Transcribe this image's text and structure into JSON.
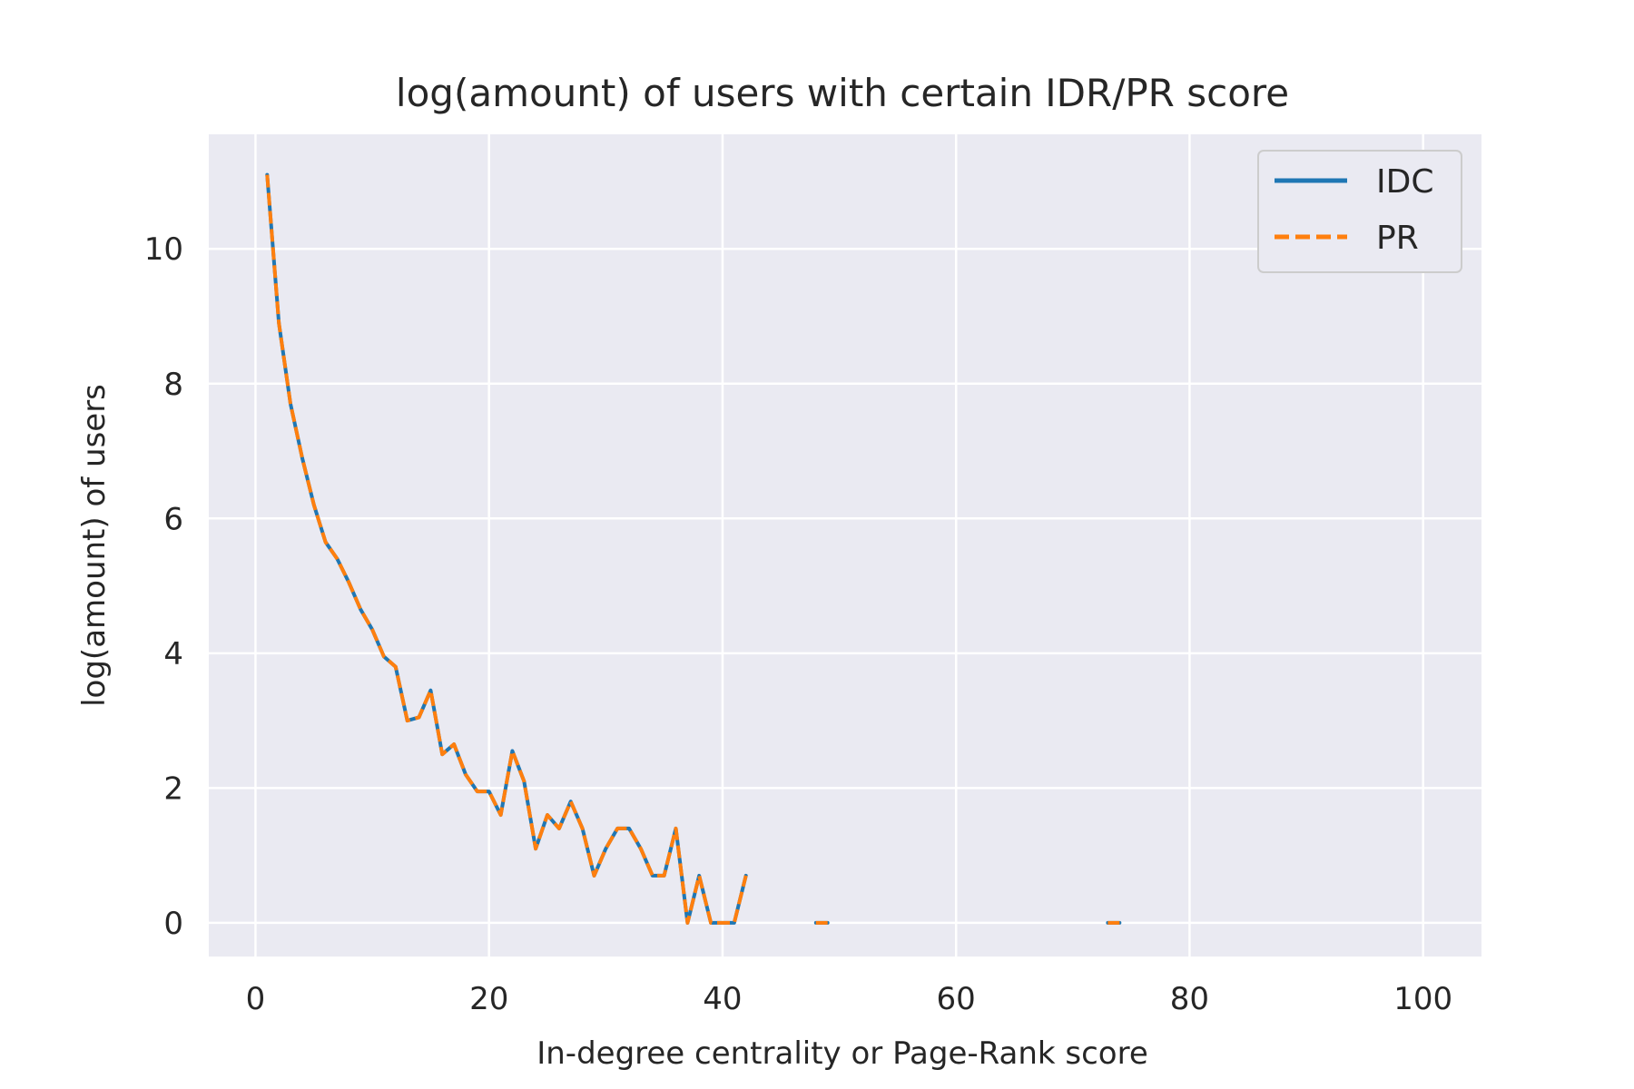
{
  "chart_data": {
    "type": "line",
    "title": "log(amount) of users with certain IDR/PR score",
    "xlabel": "In-degree centrality or Page-Rank score",
    "ylabel": "log(amount) of users",
    "xlim": [
      -4,
      105
    ],
    "ylim": [
      -0.5,
      11.7
    ],
    "xticks": [
      0,
      20,
      40,
      60,
      80,
      100
    ],
    "yticks": [
      0,
      2,
      4,
      6,
      8,
      10
    ],
    "grid": true,
    "legend_position": "top-right",
    "background_color": "#eaeaf2",
    "series": [
      {
        "name": "IDC",
        "color": "#1f77b4",
        "style": "solid",
        "segments": [
          [
            [
              1,
              11.1
            ],
            [
              2,
              8.9
            ],
            [
              3,
              7.7
            ],
            [
              4,
              6.9
            ],
            [
              5,
              6.2
            ],
            [
              6,
              5.65
            ],
            [
              7,
              5.4
            ],
            [
              8,
              5.05
            ],
            [
              9,
              4.65
            ],
            [
              10,
              4.35
            ],
            [
              11,
              3.95
            ],
            [
              12,
              3.8
            ],
            [
              13,
              3.0
            ],
            [
              14,
              3.05
            ],
            [
              15,
              3.45
            ],
            [
              16,
              2.5
            ],
            [
              17,
              2.65
            ],
            [
              18,
              2.2
            ],
            [
              19,
              1.95
            ],
            [
              20,
              1.95
            ],
            [
              21,
              1.6
            ],
            [
              22,
              2.55
            ],
            [
              23,
              2.1
            ],
            [
              24,
              1.1
            ],
            [
              25,
              1.6
            ],
            [
              26,
              1.4
            ],
            [
              27,
              1.8
            ],
            [
              28,
              1.4
            ],
            [
              29,
              0.7
            ],
            [
              30,
              1.1
            ],
            [
              31,
              1.4
            ],
            [
              32,
              1.4
            ],
            [
              33,
              1.1
            ],
            [
              34,
              0.7
            ],
            [
              35,
              0.7
            ],
            [
              36,
              1.4
            ],
            [
              37,
              0.0
            ],
            [
              38,
              0.7
            ],
            [
              39,
              0.0
            ],
            [
              40,
              0.0
            ],
            [
              41,
              0.0
            ],
            [
              42,
              0.7
            ]
          ],
          [
            [
              48,
              0.0
            ],
            [
              49,
              0.0
            ]
          ],
          [
            [
              73,
              0.0
            ],
            [
              74,
              0.0
            ]
          ]
        ]
      },
      {
        "name": "PR",
        "color": "#ff7f0e",
        "style": "dashed",
        "segments": [
          [
            [
              1,
              11.1
            ],
            [
              2,
              8.9
            ],
            [
              3,
              7.7
            ],
            [
              4,
              6.9
            ],
            [
              5,
              6.2
            ],
            [
              6,
              5.65
            ],
            [
              7,
              5.4
            ],
            [
              8,
              5.05
            ],
            [
              9,
              4.65
            ],
            [
              10,
              4.35
            ],
            [
              11,
              3.95
            ],
            [
              12,
              3.8
            ],
            [
              13,
              3.0
            ],
            [
              14,
              3.05
            ],
            [
              15,
              3.45
            ],
            [
              16,
              2.5
            ],
            [
              17,
              2.65
            ],
            [
              18,
              2.2
            ],
            [
              19,
              1.95
            ],
            [
              20,
              1.95
            ],
            [
              21,
              1.6
            ],
            [
              22,
              2.55
            ],
            [
              23,
              2.1
            ],
            [
              24,
              1.1
            ],
            [
              25,
              1.6
            ],
            [
              26,
              1.4
            ],
            [
              27,
              1.8
            ],
            [
              28,
              1.4
            ],
            [
              29,
              0.7
            ],
            [
              30,
              1.1
            ],
            [
              31,
              1.4
            ],
            [
              32,
              1.4
            ],
            [
              33,
              1.1
            ],
            [
              34,
              0.7
            ],
            [
              35,
              0.7
            ],
            [
              36,
              1.4
            ],
            [
              37,
              0.0
            ],
            [
              38,
              0.7
            ],
            [
              39,
              0.0
            ],
            [
              40,
              0.0
            ],
            [
              41,
              0.0
            ],
            [
              42,
              0.7
            ]
          ],
          [
            [
              48,
              0.0
            ],
            [
              49,
              0.0
            ]
          ],
          [
            [
              73,
              0.0
            ],
            [
              74,
              0.0
            ]
          ]
        ]
      }
    ]
  }
}
